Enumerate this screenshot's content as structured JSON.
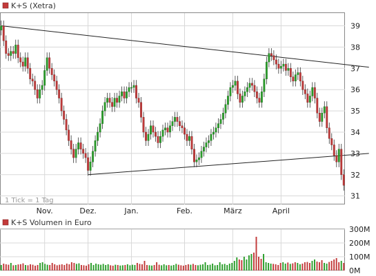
{
  "colors": {
    "up": "#2a9d2a",
    "down": "#c23a3a",
    "wick": "#333333",
    "grid": "#d8d8d8",
    "trend": "#222222",
    "marker": "#c23a3a"
  },
  "price_panel": {
    "legend": "K+S (Xetra)",
    "note": "1 Tick = 1 Tag"
  },
  "volume_panel": {
    "legend": "K+S Volumen in Euro"
  },
  "chart_data": [
    {
      "type": "candlestick",
      "title": "K+S (Xetra)",
      "ylim": [
        30.6,
        39.6
      ],
      "yticks": [
        31,
        32,
        33,
        34,
        35,
        36,
        37,
        38,
        39
      ],
      "month_labels": [
        "Nov.",
        "Dez.",
        "Jan.",
        "Feb.",
        "März",
        "April"
      ],
      "month_start_index": [
        18,
        36,
        54,
        76,
        96,
        116
      ],
      "grid": true,
      "trendlines": [
        {
          "from": {
            "x": 0,
            "y": 39.0
          },
          "to": {
            "x": 141,
            "y": 37.2
          }
        },
        {
          "from": {
            "x": 36,
            "y": 32.0
          },
          "to": {
            "x": 141,
            "y": 32.9
          }
        }
      ],
      "closes": [
        39.0,
        38.3,
        37.7,
        37.6,
        37.8,
        37.7,
        38.1,
        37.5,
        37.3,
        37.1,
        37.5,
        37.0,
        36.5,
        36.4,
        36.0,
        35.6,
        36.0,
        36.2,
        36.9,
        37.5,
        37.0,
        36.7,
        36.4,
        36.0,
        35.6,
        35.0,
        34.6,
        34.1,
        33.6,
        33.2,
        32.8,
        33.2,
        33.5,
        33.2,
        33.0,
        32.8,
        32.2,
        32.6,
        33.1,
        33.6,
        34.0,
        34.4,
        35.0,
        35.4,
        35.6,
        35.4,
        35.2,
        35.6,
        35.4,
        35.7,
        35.9,
        35.6,
        35.9,
        36.1,
        36.1,
        36.2,
        35.6,
        35.4,
        34.7,
        34.0,
        33.6,
        33.9,
        34.3,
        34.0,
        33.8,
        33.5,
        33.8,
        34.1,
        34.2,
        34.0,
        34.3,
        34.5,
        34.7,
        34.5,
        34.3,
        34.2,
        33.9,
        33.6,
        33.8,
        33.2,
        32.6,
        32.7,
        32.8,
        33.1,
        33.3,
        33.5,
        33.6,
        33.9,
        34.0,
        34.2,
        34.4,
        34.6,
        34.9,
        35.3,
        35.7,
        36.1,
        36.2,
        36.4,
        35.8,
        35.4,
        35.7,
        35.9,
        36.1,
        36.3,
        36.2,
        35.9,
        35.6,
        35.4,
        35.9,
        36.5,
        37.3,
        37.7,
        37.6,
        37.4,
        37.2,
        37.0,
        37.1,
        37.2,
        36.9,
        37.0,
        36.6,
        36.4,
        36.7,
        36.8,
        36.4,
        36.0,
        35.8,
        35.4,
        35.7,
        36.1,
        35.6,
        34.9,
        34.5,
        34.9,
        35.2,
        34.2,
        33.7,
        33.4,
        32.9,
        32.6,
        33.2,
        32.0,
        31.5
      ]
    },
    {
      "type": "bar",
      "title": "K+S Volumen in Euro",
      "ylim": [
        0,
        300
      ],
      "yticks": [
        0,
        100,
        200,
        300
      ],
      "ytick_labels": [
        "0M",
        "100M",
        "200M",
        "300M"
      ],
      "unit": "M Euro",
      "values": [
        40,
        50,
        45,
        42,
        55,
        38,
        40,
        44,
        46,
        52,
        40,
        38,
        45,
        42,
        35,
        40,
        55,
        60,
        48,
        42,
        40,
        55,
        45,
        38,
        42,
        45,
        40,
        50,
        45,
        60,
        55,
        48,
        52,
        40,
        38,
        35,
        45,
        55,
        40,
        50,
        45,
        42,
        48,
        40,
        45,
        38,
        35,
        42,
        40,
        36,
        38,
        40,
        45,
        38,
        42,
        40,
        55,
        48,
        45,
        70,
        40,
        38,
        36,
        40,
        60,
        42,
        38,
        45,
        38,
        40,
        36,
        40,
        48,
        42,
        38,
        35,
        40,
        45,
        42,
        48,
        40,
        38,
        42,
        45,
        60,
        40,
        42,
        50,
        38,
        40,
        60,
        45,
        48,
        40,
        50,
        55,
        70,
        95,
        80,
        75,
        100,
        80,
        110,
        120,
        130,
        245,
        100,
        85,
        120,
        60,
        55,
        50,
        48,
        45,
        40,
        55,
        60,
        50,
        58,
        48,
        52,
        60,
        55,
        45,
        50,
        60,
        62,
        55,
        70,
        80,
        65,
        60,
        75,
        55,
        50,
        62,
        70,
        80,
        90,
        60,
        70,
        55
      ]
    }
  ]
}
